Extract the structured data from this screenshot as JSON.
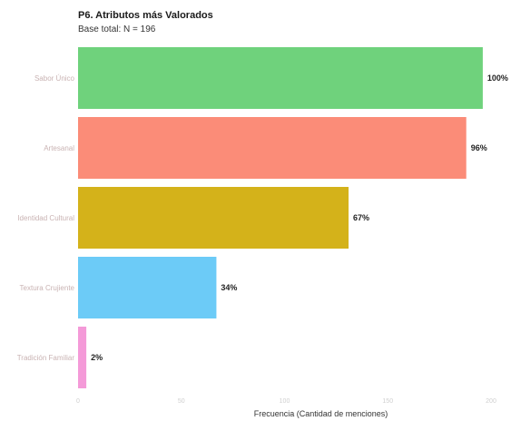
{
  "chart": {
    "title": "P6. Atributos más Valorados",
    "subtitle": "Base total: N = 196"
  },
  "chart_data": {
    "type": "bar",
    "orientation": "horizontal",
    "title": "P6. Atributos más Valorados",
    "subtitle": "Base total: N = 196",
    "xlabel": "Frecuencia (Cantidad de menciones)",
    "ylabel": "",
    "categories": [
      "Sabor Único",
      "Artesanal",
      "Identidad Cultural",
      "Textura Crujiente",
      "Tradición Familiar"
    ],
    "values": [
      196,
      188,
      131,
      67,
      4
    ],
    "data_labels": [
      "100%",
      "96%",
      "67%",
      "34%",
      "2%"
    ],
    "colors": [
      "#6fd27c",
      "#fb8c78",
      "#d4b21a",
      "#6ccbf7",
      "#f49ad8"
    ],
    "xlim": [
      0,
      200
    ],
    "xticks": [
      "0",
      "50",
      "100",
      "150",
      "200"
    ],
    "grid": false,
    "legend": "none"
  }
}
